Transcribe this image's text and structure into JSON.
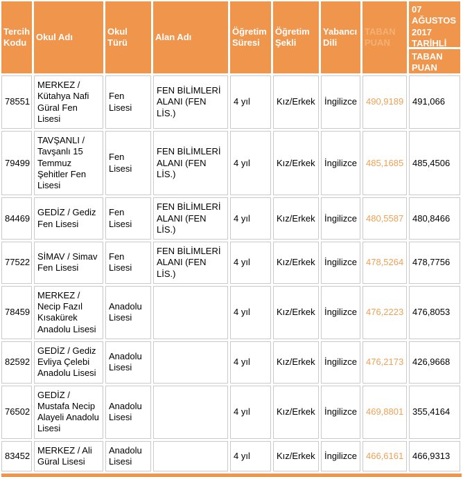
{
  "colors": {
    "header_bg": "#F0954C",
    "header_text": "#FFFFFF",
    "faded_header_text": "#F4B171",
    "value_orange": "#F0A055",
    "cell_border": "#C9C9C9"
  },
  "table": {
    "columns": [
      {
        "key": "tercih_kodu",
        "label": "Tercih Kodu"
      },
      {
        "key": "okul_adi",
        "label": "Okul Adı"
      },
      {
        "key": "okul_turu",
        "label": "Okul Türü"
      },
      {
        "key": "alan_adi",
        "label": "Alan Adı"
      },
      {
        "key": "ogretim_suresi",
        "label": "Öğretim Süresi"
      },
      {
        "key": "ogretim_sekli",
        "label": "Öğretim Şekli"
      },
      {
        "key": "yabanci_dili",
        "label": "Yabancı Dili"
      },
      {
        "key": "taban_puan",
        "label": "TABAN PUAN"
      },
      {
        "key": "taban_puan_2017",
        "label_top": "07 AĞUSTOS 2017 TARİHLİ",
        "label_bottom": "TABAN PUAN"
      }
    ],
    "rows": [
      {
        "tercih_kodu": "78551",
        "okul_adi": "MERKEZ / Kütahya Nafi Güral Fen Lisesi",
        "okul_turu": "Fen Lisesi",
        "alan_adi": "FEN BİLİMLERİ ALANI (FEN LİS.)",
        "ogretim_suresi": "4 yıl",
        "ogretim_sekli": "Kız/Erkek",
        "yabanci_dili": "İngilizce",
        "taban_puan": "490,9189",
        "taban_puan_2017": "491,066"
      },
      {
        "tercih_kodu": "79499",
        "okul_adi": "TAVŞANLI / Tavşanlı 15 Temmuz Şehitler Fen Lisesi",
        "okul_turu": "Fen Lisesi",
        "alan_adi": "FEN BİLİMLERİ ALANI (FEN LİS.)",
        "ogretim_suresi": "4 yıl",
        "ogretim_sekli": "Kız/Erkek",
        "yabanci_dili": "İngilizce",
        "taban_puan": "485,1685",
        "taban_puan_2017": "485,4506"
      },
      {
        "tercih_kodu": "84469",
        "okul_adi": "GEDİZ / Gediz Fen Lisesi",
        "okul_turu": "Fen Lisesi",
        "alan_adi": "FEN BİLİMLERİ ALANI (FEN LİS.)",
        "ogretim_suresi": "4 yıl",
        "ogretim_sekli": "Kız/Erkek",
        "yabanci_dili": "İngilizce",
        "taban_puan": "480,5587",
        "taban_puan_2017": "480,8466"
      },
      {
        "tercih_kodu": "77522",
        "okul_adi": "SİMAV / Simav Fen Lisesi",
        "okul_turu": "Fen Lisesi",
        "alan_adi": "FEN BİLİMLERİ ALANI (FEN LİS.)",
        "ogretim_suresi": "4 yıl",
        "ogretim_sekli": "Kız/Erkek",
        "yabanci_dili": "İngilizce",
        "taban_puan": "478,5264",
        "taban_puan_2017": "478,7756"
      },
      {
        "tercih_kodu": "78459",
        "okul_adi": "MERKEZ / Necip Fazıl Kısakürek Anadolu Lisesi",
        "okul_turu": "Anadolu Lisesi",
        "alan_adi": "",
        "ogretim_suresi": "4 yıl",
        "ogretim_sekli": "Kız/Erkek",
        "yabanci_dili": "İngilizce",
        "taban_puan": "476,2223",
        "taban_puan_2017": "476,8053"
      },
      {
        "tercih_kodu": "82592",
        "okul_adi": "GEDİZ / Gediz Evliya Çelebi Anadolu Lisesi",
        "okul_turu": "Anadolu Lisesi",
        "alan_adi": "",
        "ogretim_suresi": "4 yıl",
        "ogretim_sekli": "Kız/Erkek",
        "yabanci_dili": "İngilizce",
        "taban_puan": "476,2173",
        "taban_puan_2017": "426,9668"
      },
      {
        "tercih_kodu": "76502",
        "okul_adi": "GEDİZ / Mustafa Necip Alayeli Anadolu Lisesi",
        "okul_turu": "Anadolu Lisesi",
        "alan_adi": "",
        "ogretim_suresi": "4 yıl",
        "ogretim_sekli": "Kız/Erkek",
        "yabanci_dili": "İngilizce",
        "taban_puan": "469,8801",
        "taban_puan_2017": "355,4164"
      },
      {
        "tercih_kodu": "83452",
        "okul_adi": "MERKEZ / Ali Güral Lisesi",
        "okul_turu": "Anadolu Lisesi",
        "alan_adi": "",
        "ogretim_suresi": "4 yıl",
        "ogretim_sekli": "Kız/Erkek",
        "yabanci_dili": "İngilizce",
        "taban_puan": "466,6161",
        "taban_puan_2017": "466,9313"
      }
    ]
  }
}
